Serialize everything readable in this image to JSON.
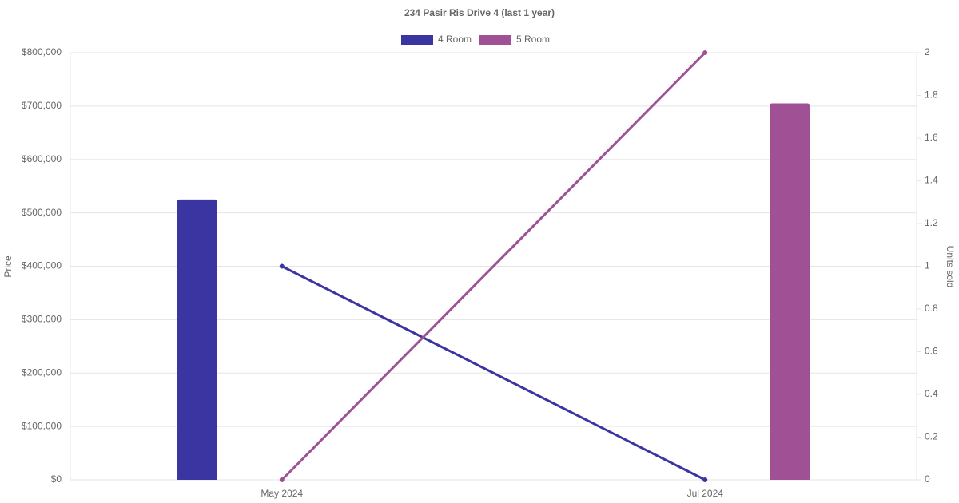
{
  "chart_data": {
    "type": "bar-line",
    "title": "234 Pasir Ris Drive 4 (last 1 year)",
    "categories": [
      "May 2024",
      "Jul 2024"
    ],
    "y_label": "Price",
    "y2_label": "Units sold",
    "ylim": [
      0,
      800000
    ],
    "yticks": [
      {
        "value": 0,
        "label": "$0"
      },
      {
        "value": 100000,
        "label": "$100,000"
      },
      {
        "value": 200000,
        "label": "$200,000"
      },
      {
        "value": 300000,
        "label": "$300,000"
      },
      {
        "value": 400000,
        "label": "$400,000"
      },
      {
        "value": 500000,
        "label": "$500,000"
      },
      {
        "value": 600000,
        "label": "$600,000"
      },
      {
        "value": 700000,
        "label": "$700,000"
      },
      {
        "value": 800000,
        "label": "$800,000"
      }
    ],
    "y2lim": [
      0,
      2
    ],
    "y2ticks": [
      0,
      0.2,
      0.4,
      0.6,
      0.8,
      1,
      1.2,
      1.4,
      1.6,
      1.8,
      2
    ],
    "grid": true,
    "legend": "top",
    "series": [
      {
        "name": "4 Room",
        "color": "#3a35a0",
        "values": [
          525000,
          null
        ],
        "units_sold": [
          1,
          0
        ]
      },
      {
        "name": "5 Room",
        "color": "#a05195",
        "values": [
          null,
          705000
        ],
        "units_sold": [
          0,
          2
        ]
      }
    ]
  }
}
